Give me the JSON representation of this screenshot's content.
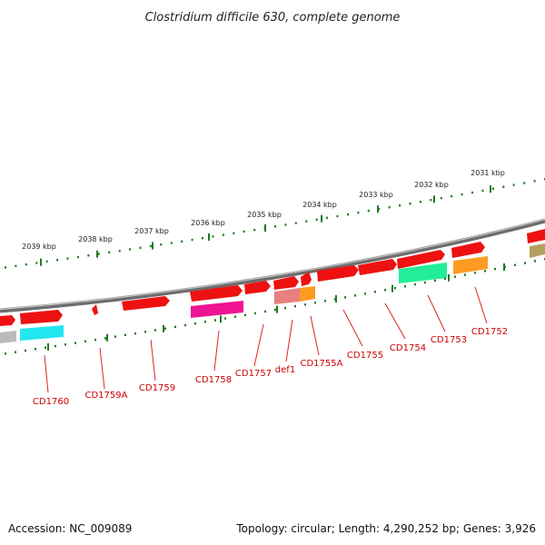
{
  "title": "Clostridium difficile 630, complete genome",
  "footer": {
    "accession": "Accession: NC_009089",
    "summary": "Topology: circular; Length: 4,290,252 bp; Genes: 3,926"
  },
  "colors": {
    "backbone": "#8a8a8a",
    "tick_green": "#1e7a1e",
    "gene_red": "#ee1111",
    "label_red": "#cc0000"
  },
  "kbp_markers": [
    {
      "label": "2039 kbp"
    },
    {
      "label": "2038 kbp"
    },
    {
      "label": "2037 kbp"
    },
    {
      "label": "2036 kbp"
    },
    {
      "label": "2035 kbp"
    },
    {
      "label": "2034 kbp"
    },
    {
      "label": "2033 kbp"
    },
    {
      "label": "2032 kbp"
    },
    {
      "label": "2031 kbp"
    }
  ],
  "genes": [
    {
      "label": "CD1760",
      "cog_color": "#22e6f0"
    },
    {
      "label": "CD1759A",
      "cog_color": null
    },
    {
      "label": "CD1759",
      "cog_color": null
    },
    {
      "label": "CD1758",
      "cog_color": "#ee1493"
    },
    {
      "label": "CD1757",
      "cog_color": null
    },
    {
      "label": "def1",
      "cog_color": "#e88080"
    },
    {
      "label": "CD1755A",
      "cog_color": "#ff9b22"
    },
    {
      "label": "CD1755",
      "cog_color": null
    },
    {
      "label": "CD1754",
      "cog_color": null
    },
    {
      "label": "CD1753",
      "cog_color": "#22ee99"
    },
    {
      "label": "CD1752",
      "cog_color": "#ff9b22"
    }
  ]
}
